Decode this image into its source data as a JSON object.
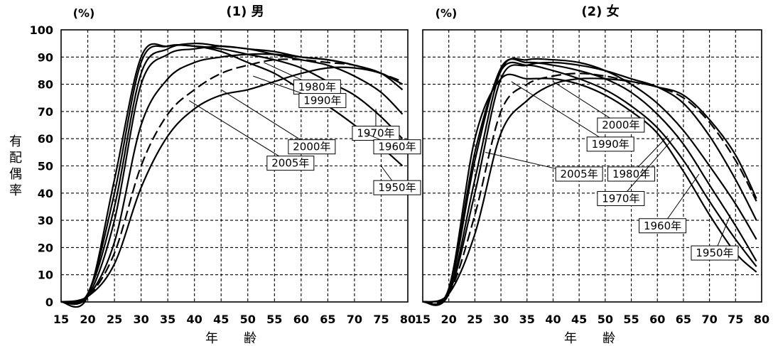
{
  "figure": {
    "ylabel": "有\n配\n偶\n率",
    "unit": "(%)",
    "xlabel": "年　　齢"
  },
  "chart_data": [
    {
      "type": "line",
      "title": "(1) 男",
      "xlim": [
        15,
        80
      ],
      "ylim": [
        0,
        100
      ],
      "xticks": [
        15,
        20,
        25,
        30,
        35,
        40,
        45,
        50,
        55,
        60,
        65,
        70,
        75,
        80
      ],
      "yticks": [
        0,
        10,
        20,
        30,
        40,
        50,
        60,
        70,
        80,
        90,
        100
      ],
      "grid": true,
      "x": [
        15,
        20,
        25,
        30,
        35,
        40,
        45,
        50,
        55,
        60,
        65,
        70,
        75,
        79
      ],
      "series": [
        {
          "name": "1950年",
          "dash": false,
          "values": [
            0,
            2,
            45,
            90,
            94,
            94,
            92,
            88,
            84,
            78,
            72,
            65,
            57,
            50
          ]
        },
        {
          "name": "1960年",
          "dash": false,
          "values": [
            0,
            3,
            40,
            88,
            94,
            94,
            93,
            91,
            89,
            86,
            81,
            76,
            68,
            60
          ]
        },
        {
          "name": "1970年",
          "dash": false,
          "values": [
            0,
            3,
            35,
            84,
            93,
            95,
            94,
            93,
            91,
            89,
            87,
            83,
            77,
            69
          ]
        },
        {
          "name": "1980年",
          "dash": false,
          "values": [
            0,
            2,
            30,
            80,
            91,
            93,
            94,
            93,
            92,
            90,
            89,
            87,
            84,
            78
          ]
        },
        {
          "name": "1990年",
          "dash": false,
          "values": [
            0,
            2,
            22,
            65,
            82,
            88,
            90,
            91,
            91,
            90,
            89,
            87,
            84,
            80
          ]
        },
        {
          "name": "2000年",
          "dash": true,
          "values": [
            0,
            2,
            18,
            50,
            69,
            78,
            84,
            87,
            89,
            89,
            88,
            87,
            84,
            81
          ]
        },
        {
          "name": "2005年",
          "dash": false,
          "values": [
            0,
            2,
            14,
            42,
            61,
            71,
            76,
            78,
            81,
            84,
            86,
            86,
            84,
            80
          ]
        }
      ],
      "labels": [
        "1980年",
        "1990年",
        "2000年",
        "2005年",
        "1970年",
        "1960年",
        "1950年"
      ]
    },
    {
      "type": "line",
      "title": "(2) 女",
      "xlim": [
        15,
        80
      ],
      "ylim": [
        0,
        100
      ],
      "xticks": [
        15,
        20,
        25,
        30,
        35,
        40,
        45,
        50,
        55,
        60,
        65,
        70,
        75,
        80
      ],
      "yticks": [
        0,
        10,
        20,
        30,
        40,
        50,
        60,
        70,
        80,
        90,
        100
      ],
      "grid": true,
      "x": [
        15,
        20,
        25,
        30,
        35,
        40,
        45,
        50,
        55,
        60,
        65,
        70,
        75,
        79
      ],
      "series": [
        {
          "name": "1950年",
          "dash": false,
          "values": [
            0,
            5,
            60,
            82,
            82,
            82,
            80,
            76,
            70,
            62,
            48,
            32,
            18,
            11
          ]
        },
        {
          "name": "1960年",
          "dash": false,
          "values": [
            0,
            4,
            55,
            85,
            87,
            85,
            82,
            78,
            72,
            64,
            52,
            37,
            23,
            13
          ]
        },
        {
          "name": "1970年",
          "dash": false,
          "values": [
            0,
            4,
            52,
            86,
            88,
            87,
            85,
            82,
            77,
            69,
            58,
            43,
            28,
            15
          ]
        },
        {
          "name": "1980年",
          "dash": false,
          "values": [
            0,
            3,
            45,
            85,
            89,
            89,
            88,
            85,
            80,
            73,
            63,
            50,
            36,
            23
          ]
        },
        {
          "name": "1990年",
          "dash": false,
          "values": [
            0,
            3,
            40,
            82,
            87,
            88,
            87,
            85,
            82,
            79,
            73,
            61,
            45,
            30
          ]
        },
        {
          "name": "2000年",
          "dash": true,
          "values": [
            0,
            3,
            32,
            70,
            80,
            83,
            84,
            83,
            81,
            79,
            75,
            66,
            52,
            37
          ]
        },
        {
          "name": "2005年",
          "dash": false,
          "values": [
            0,
            3,
            25,
            62,
            74,
            80,
            82,
            82,
            81,
            79,
            76,
            67,
            54,
            38
          ]
        }
      ],
      "labels": [
        "2000年",
        "1990年",
        "2005年",
        "1980年",
        "1970年",
        "1960年",
        "1950年"
      ]
    }
  ]
}
